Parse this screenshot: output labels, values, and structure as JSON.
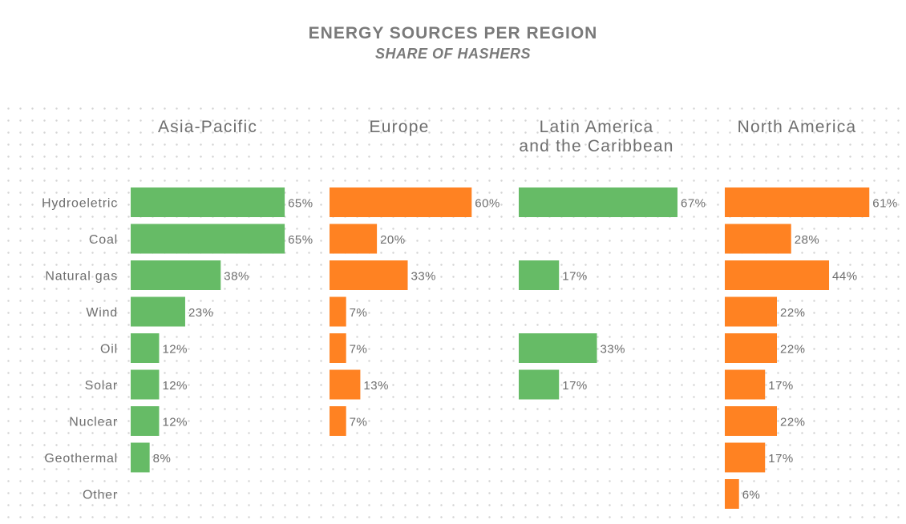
{
  "header": {
    "title": "ENERGY SOURCES PER REGION",
    "subtitle": "SHARE OF HASHERS"
  },
  "colors": {
    "green": "#66bb66",
    "orange": "#ff8222",
    "text": "#6e6e6e",
    "dots": "#d4d4d4"
  },
  "chart_data": {
    "type": "bar",
    "orientation": "horizontal",
    "title": "ENERGY SOURCES PER REGION",
    "subtitle": "SHARE OF HASHERS",
    "categories": [
      "Hydroeletric",
      "Coal",
      "Natural gas",
      "Wind",
      "Oil",
      "Solar",
      "Nuclear",
      "Geothermal",
      "Other"
    ],
    "unit": "%",
    "panels": [
      {
        "name": [
          "Asia-Pacific"
        ],
        "color": "#66bb66",
        "values": [
          65,
          65,
          38,
          23,
          12,
          12,
          12,
          8,
          null
        ]
      },
      {
        "name": [
          "Europe"
        ],
        "color": "#ff8222",
        "values": [
          60,
          20,
          33,
          7,
          7,
          13,
          7,
          null,
          null
        ]
      },
      {
        "name": [
          "Latin America",
          "and the Caribbean"
        ],
        "color": "#66bb66",
        "values": [
          67,
          null,
          17,
          null,
          33,
          17,
          null,
          null,
          null
        ]
      },
      {
        "name": [
          "North America"
        ],
        "color": "#ff8222",
        "values": [
          61,
          28,
          44,
          22,
          22,
          17,
          22,
          17,
          6
        ]
      }
    ]
  }
}
